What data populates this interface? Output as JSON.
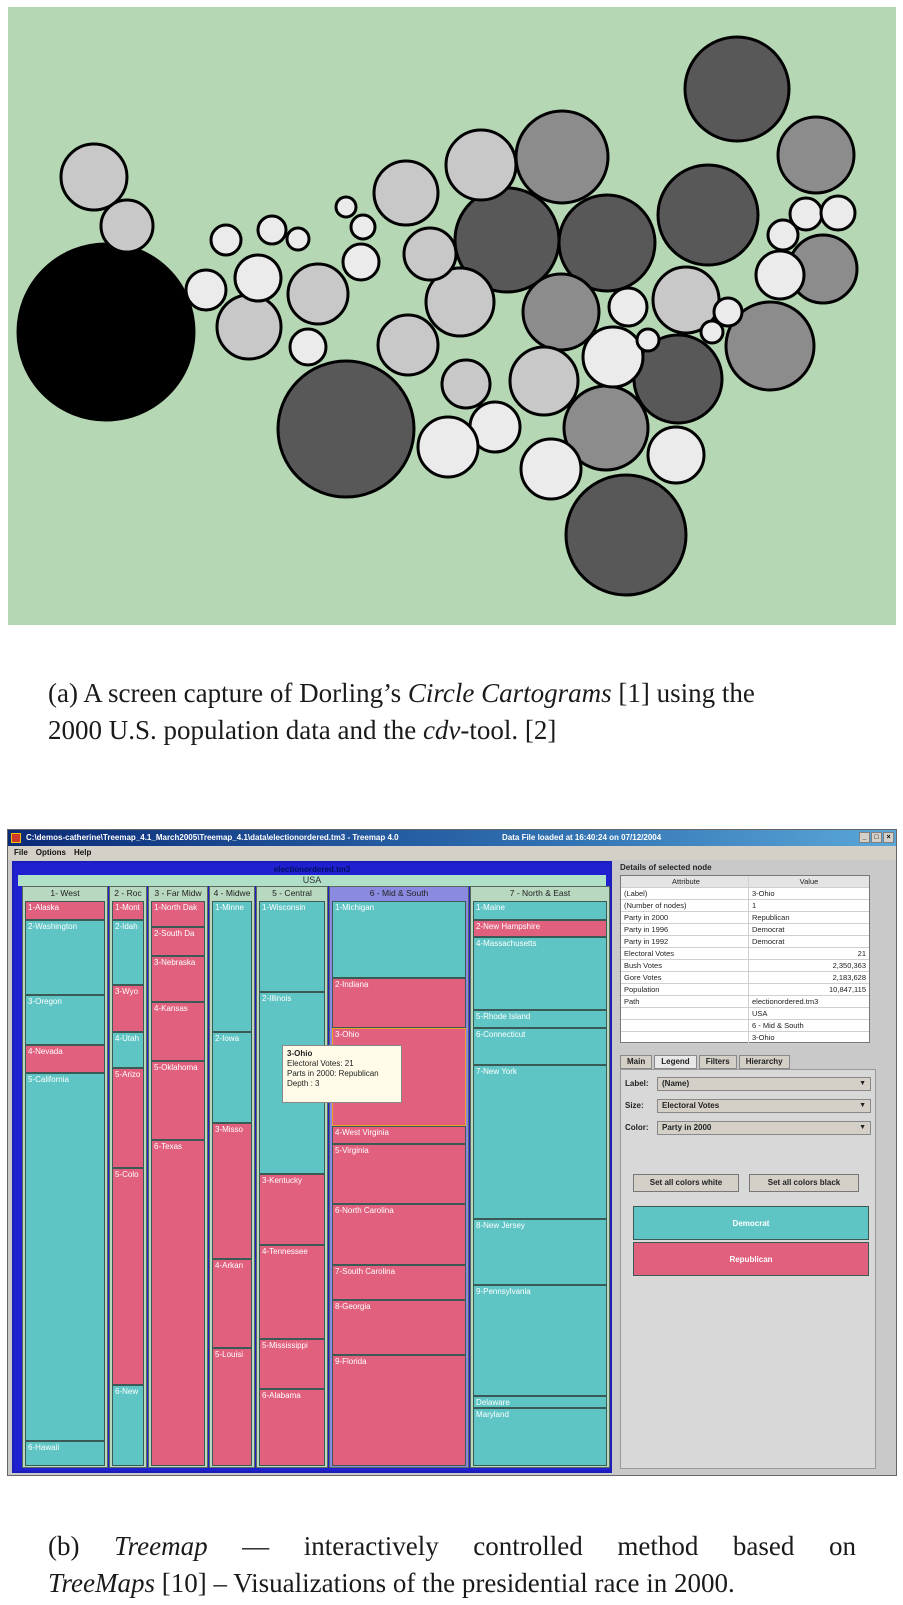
{
  "figure_a": {
    "background_color": "#b6d7b4",
    "circle_fills": [
      "#000000",
      "#585858",
      "#8c8c8c",
      "#c8c8c8",
      "#ebebeb"
    ]
  },
  "caption_a": {
    "prefix": "(a) A screen capture of Dorling’s ",
    "italic": "Circle Cartograms",
    "middle": " [1] using the",
    "line2_prefix": "2000 U.S. population data and the ",
    "italic2": "cdv",
    "suffix": "-tool. [2]"
  },
  "treemap_window": {
    "title": "C:\\demos-catherine\\Treemap_4.1_March2005\\Treemap_4.1\\data\\electionordered.tm3 - Treemap 4.0",
    "status": "Data File loaded at 16:40:24 on 07/12/2004",
    "window_buttons": [
      "_",
      "□",
      "×"
    ],
    "menu": [
      "File",
      "Options",
      "Help"
    ],
    "colors": {
      "democrat": "#5fc4c4",
      "republican": "#e0607e"
    },
    "root_label": "electionordered.tm3",
    "usa_label": "USA",
    "regions": [
      {
        "name": "1- West",
        "states": [
          "1-Alaska",
          "2-Washington",
          "3-Oregon",
          "4-Nevada",
          "5-California",
          "6-Hawaii"
        ]
      },
      {
        "name": "2 - Roc",
        "states": [
          "1-Mont",
          "2-Idah",
          "3-Wyo",
          "4-Utah",
          "5-Arizo",
          "5-Colo",
          "6-New"
        ]
      },
      {
        "name": "3 - Far Midw",
        "states": [
          "1-North Dak",
          "2-South Da",
          "3-Nebraska",
          "4-Kansas",
          "5-Oklahoma",
          "6-Texas"
        ]
      },
      {
        "name": "4 - Midwe",
        "states": [
          "1-Minne",
          "2-Iowa",
          "3-Misso",
          "4-Arkan",
          "5-Louisi"
        ]
      },
      {
        "name": "5 - Central",
        "states": [
          "1-Wisconsin",
          "2-Illinois",
          "3-Kentucky",
          "4-Tennessee",
          "5-Mississippi",
          "6-Alabama"
        ]
      },
      {
        "name": "6 - Mid & South",
        "states": [
          "1-Michigan",
          "2-Indiana",
          "3-Ohio",
          "4-West Virginia",
          "5-Virginia",
          "6-North Carolina",
          "7-South Carolina",
          "8-Georgia",
          "9-Florida"
        ]
      },
      {
        "name": "7 - North & East",
        "states": [
          "1-Maine",
          "2-New Hampshire",
          "4-Massachusetts",
          "5-Rhode Island",
          "6-Connecticut",
          "7-New York",
          "8-New Jersey",
          "9-Pennsylvania",
          "Delaware",
          "Maryland"
        ]
      }
    ],
    "tooltip": {
      "title": "3-Ohio",
      "line1": "Electoral Votes: 21",
      "line2": "Parts in 2000: Republican",
      "line3": "Depth : 3"
    },
    "details": {
      "title": "Details of selected node",
      "headers": [
        "Attribute",
        "Value"
      ],
      "rows": [
        [
          "(Label)",
          "3-Ohio"
        ],
        [
          "(Number of nodes)",
          "1"
        ],
        [
          "Party in 2000",
          "Republican"
        ],
        [
          "Party in 1996",
          "Democrat"
        ],
        [
          "Party in 1992",
          "Democrat"
        ],
        [
          "Electoral Votes",
          "21"
        ],
        [
          "Bush Votes",
          "2,350,363"
        ],
        [
          "Gore Votes",
          "2,183,628"
        ],
        [
          "Population",
          "10,847,115"
        ],
        [
          "Path",
          "electionordered.tm3"
        ],
        [
          "",
          "USA"
        ],
        [
          "",
          "6 - Mid & South"
        ],
        [
          "",
          "3-Ohio"
        ]
      ]
    },
    "tabs": [
      "Main",
      "Legend",
      "Filters",
      "Hierarchy"
    ],
    "legend": {
      "label_field": "Label:",
      "label_value": "(Name)",
      "size_field": "Size:",
      "size_value": "Electoral Votes",
      "color_field": "Color:",
      "color_value": "Party in 2000",
      "btn_white": "Set all colors white",
      "btn_black": "Set all colors black",
      "swatch_dem": "Democrat",
      "swatch_rep": "Republican"
    }
  },
  "caption_b": {
    "prefix": "(b) ",
    "italic1": "Treemap",
    "line1_rest": " — interactively controlled method based on",
    "italic2": "TreeMaps",
    "line2_rest": " [10] – Visualizations of the presidential race in 2000."
  }
}
